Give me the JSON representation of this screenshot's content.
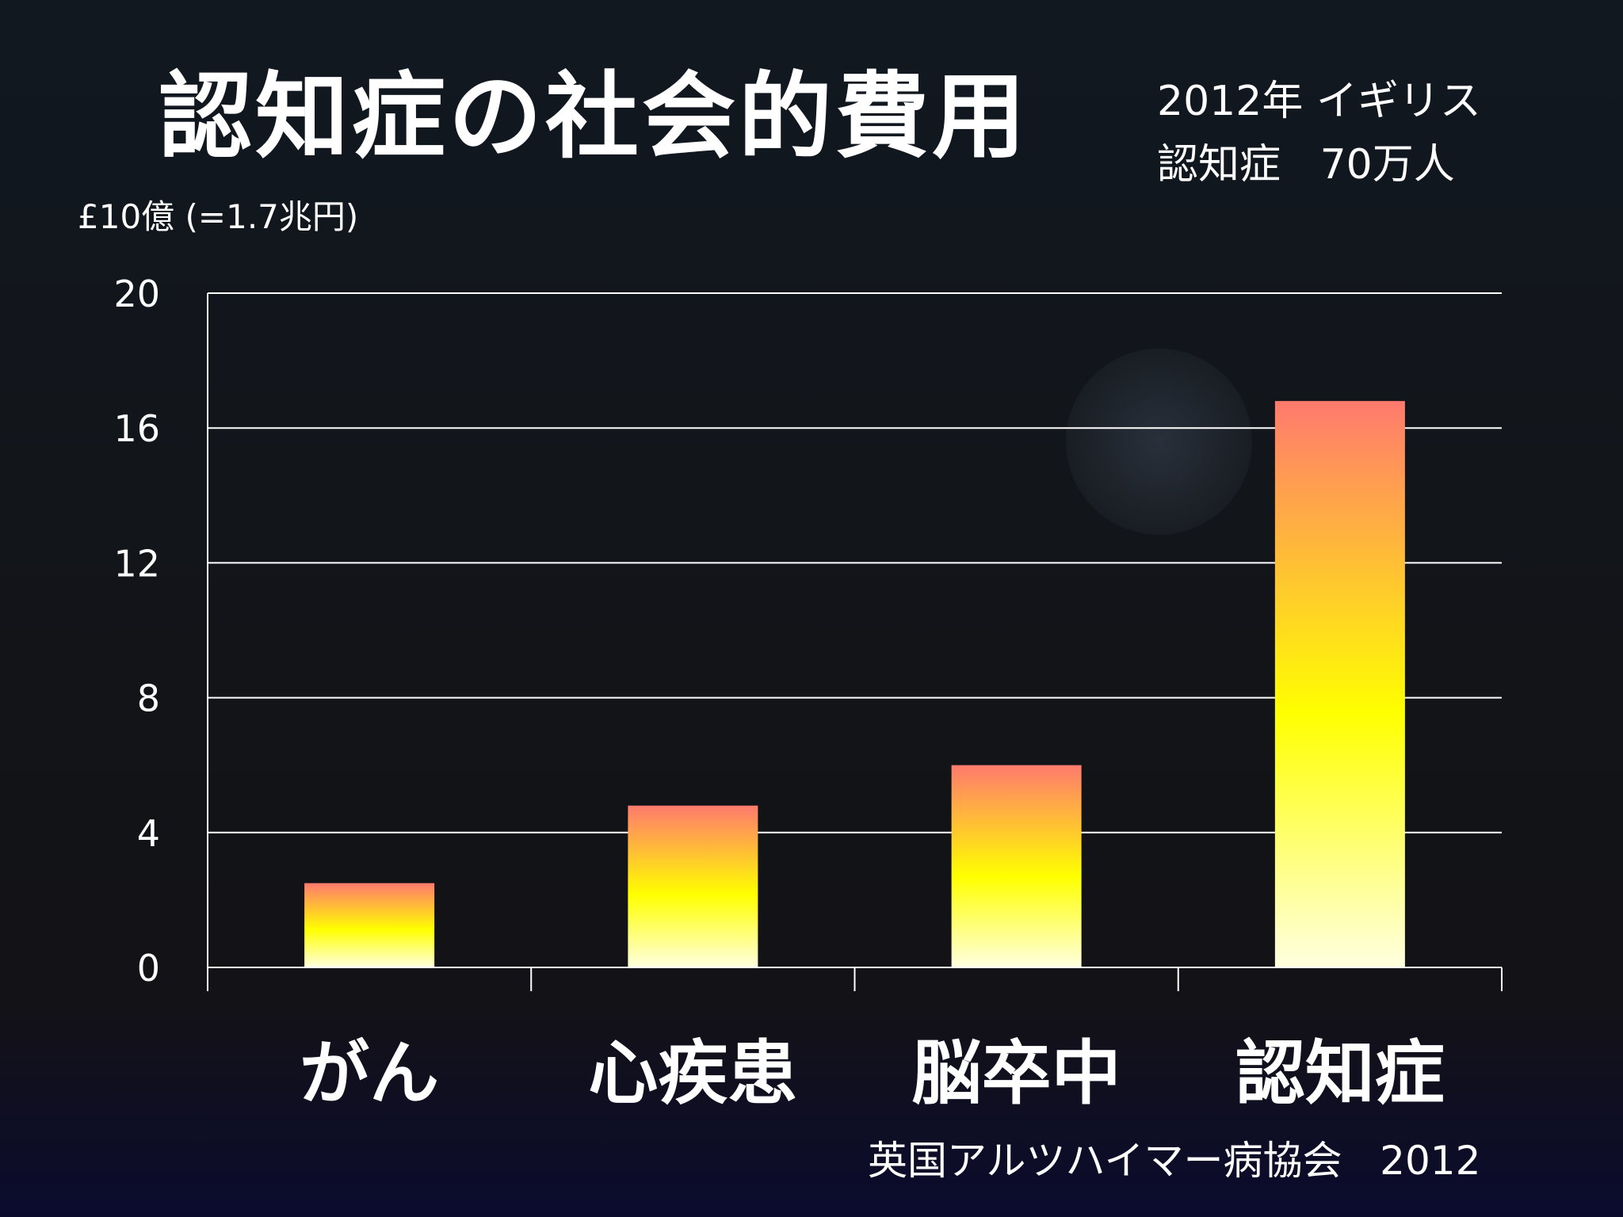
{
  "title": "認知症の社会的費用",
  "info": {
    "line1": "2012年 イギリス",
    "line2": "認知症   70万人"
  },
  "unit_label": "£10億 (=1.7兆円)",
  "source": "英国アルツハイマー病協会   2012",
  "chart_data": {
    "type": "bar",
    "categories": [
      "がん",
      "心疾患",
      "脳卒中",
      "認知症"
    ],
    "values": [
      2.5,
      4.8,
      6.0,
      16.8
    ],
    "ylim": [
      0,
      20
    ],
    "yticks": [
      0,
      4,
      8,
      12,
      16,
      20
    ],
    "grid": true,
    "colors": {
      "bar_top": "#ff7a6e",
      "bar_mid": "#ffff00",
      "bar_bottom": "#ffffe0",
      "grid": "#ffffff"
    }
  }
}
